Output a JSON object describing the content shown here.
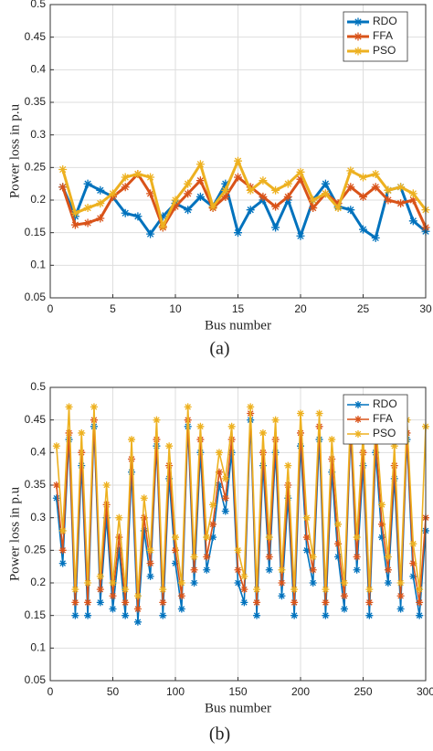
{
  "chart_data": [
    {
      "type": "line",
      "caption": "(a)",
      "xlabel": "Bus number",
      "ylabel": "Power loss in p.u",
      "x": [
        1,
        2,
        3,
        4,
        5,
        6,
        7,
        8,
        9,
        10,
        11,
        12,
        13,
        14,
        15,
        16,
        17,
        18,
        19,
        20,
        21,
        22,
        23,
        24,
        25,
        26,
        27,
        28,
        29,
        30
      ],
      "series": [
        {
          "name": "RDO",
          "color": "#0072bd",
          "values": [
            0.22,
            0.175,
            0.225,
            0.215,
            0.205,
            0.18,
            0.175,
            0.148,
            0.175,
            0.195,
            0.185,
            0.205,
            0.19,
            0.225,
            0.15,
            0.185,
            0.2,
            0.158,
            0.2,
            0.145,
            0.2,
            0.225,
            0.19,
            0.185,
            0.155,
            0.142,
            0.215,
            0.22,
            0.168,
            0.152
          ]
        },
        {
          "name": "FFA",
          "color": "#d95319",
          "values": [
            0.22,
            0.162,
            0.165,
            0.172,
            0.205,
            0.22,
            0.24,
            0.21,
            0.158,
            0.19,
            0.21,
            0.23,
            0.188,
            0.205,
            0.235,
            0.22,
            0.205,
            0.19,
            0.205,
            0.232,
            0.188,
            0.21,
            0.195,
            0.22,
            0.205,
            0.22,
            0.2,
            0.195,
            0.2,
            0.158
          ]
        },
        {
          "name": "PSO",
          "color": "#edb120",
          "values": [
            0.247,
            0.18,
            0.188,
            0.195,
            0.21,
            0.235,
            0.24,
            0.235,
            0.16,
            0.2,
            0.225,
            0.255,
            0.19,
            0.215,
            0.26,
            0.215,
            0.23,
            0.215,
            0.225,
            0.243,
            0.2,
            0.21,
            0.188,
            0.245,
            0.235,
            0.24,
            0.215,
            0.22,
            0.21,
            0.185
          ]
        }
      ],
      "xlim": [
        0,
        30
      ],
      "xticks": [
        0,
        5,
        10,
        15,
        20,
        25,
        30
      ],
      "ylim": [
        0.05,
        0.5
      ],
      "yticks": [
        0.05,
        0.1,
        0.15,
        0.2,
        0.25,
        0.3,
        0.35,
        0.4,
        0.45,
        0.5
      ],
      "grid": true,
      "legend": "upper right"
    },
    {
      "type": "line",
      "caption": "(b)",
      "xlabel": "Bus number",
      "ylabel": "Power loss in p.u",
      "x": [
        5,
        10,
        15,
        20,
        25,
        30,
        35,
        40,
        45,
        50,
        55,
        60,
        65,
        70,
        75,
        80,
        85,
        90,
        95,
        100,
        105,
        110,
        115,
        120,
        125,
        130,
        135,
        140,
        145,
        150,
        155,
        160,
        165,
        170,
        175,
        180,
        185,
        190,
        195,
        200,
        205,
        210,
        215,
        220,
        225,
        230,
        235,
        240,
        245,
        250,
        255,
        260,
        265,
        270,
        275,
        280,
        285,
        290,
        295,
        300
      ],
      "series": [
        {
          "name": "RDO",
          "color": "#0072bd",
          "values": [
            0.33,
            0.23,
            0.42,
            0.15,
            0.38,
            0.15,
            0.44,
            0.17,
            0.3,
            0.16,
            0.25,
            0.15,
            0.37,
            0.14,
            0.28,
            0.21,
            0.41,
            0.15,
            0.36,
            0.23,
            0.16,
            0.44,
            0.2,
            0.4,
            0.22,
            0.27,
            0.35,
            0.31,
            0.4,
            0.2,
            0.17,
            0.45,
            0.15,
            0.38,
            0.22,
            0.4,
            0.18,
            0.33,
            0.15,
            0.41,
            0.25,
            0.2,
            0.42,
            0.15,
            0.37,
            0.24,
            0.16,
            0.43,
            0.22,
            0.38,
            0.15,
            0.4,
            0.27,
            0.2,
            0.36,
            0.16,
            0.42,
            0.21,
            0.15,
            0.28
          ]
        },
        {
          "name": "FFA",
          "color": "#d95319",
          "values": [
            0.35,
            0.25,
            0.43,
            0.17,
            0.4,
            0.17,
            0.45,
            0.19,
            0.32,
            0.18,
            0.27,
            0.17,
            0.39,
            0.16,
            0.3,
            0.23,
            0.42,
            0.17,
            0.38,
            0.25,
            0.18,
            0.45,
            0.22,
            0.42,
            0.24,
            0.29,
            0.37,
            0.33,
            0.42,
            0.22,
            0.19,
            0.46,
            0.17,
            0.4,
            0.24,
            0.42,
            0.2,
            0.35,
            0.17,
            0.43,
            0.27,
            0.22,
            0.44,
            0.17,
            0.39,
            0.26,
            0.18,
            0.44,
            0.24,
            0.4,
            0.17,
            0.42,
            0.29,
            0.22,
            0.38,
            0.18,
            0.43,
            0.23,
            0.17,
            0.3
          ]
        },
        {
          "name": "PSO",
          "color": "#edb120",
          "values": [
            0.41,
            0.28,
            0.47,
            0.19,
            0.43,
            0.2,
            0.47,
            0.21,
            0.35,
            0.2,
            0.3,
            0.19,
            0.42,
            0.18,
            0.33,
            0.25,
            0.45,
            0.19,
            0.41,
            0.27,
            0.2,
            0.47,
            0.24,
            0.44,
            0.27,
            0.32,
            0.4,
            0.36,
            0.44,
            0.25,
            0.21,
            0.47,
            0.19,
            0.43,
            0.27,
            0.45,
            0.22,
            0.38,
            0.19,
            0.46,
            0.3,
            0.24,
            0.46,
            0.19,
            0.42,
            0.29,
            0.2,
            0.46,
            0.27,
            0.43,
            0.19,
            0.45,
            0.32,
            0.24,
            0.41,
            0.2,
            0.45,
            0.26,
            0.19,
            0.44
          ]
        }
      ],
      "xlim": [
        0,
        300
      ],
      "xticks": [
        0,
        50,
        100,
        150,
        200,
        250,
        300
      ],
      "ylim": [
        0.05,
        0.5
      ],
      "yticks": [
        0.05,
        0.1,
        0.15,
        0.2,
        0.25,
        0.3,
        0.35,
        0.4,
        0.45,
        0.5
      ],
      "grid": true,
      "legend": "upper right"
    }
  ]
}
